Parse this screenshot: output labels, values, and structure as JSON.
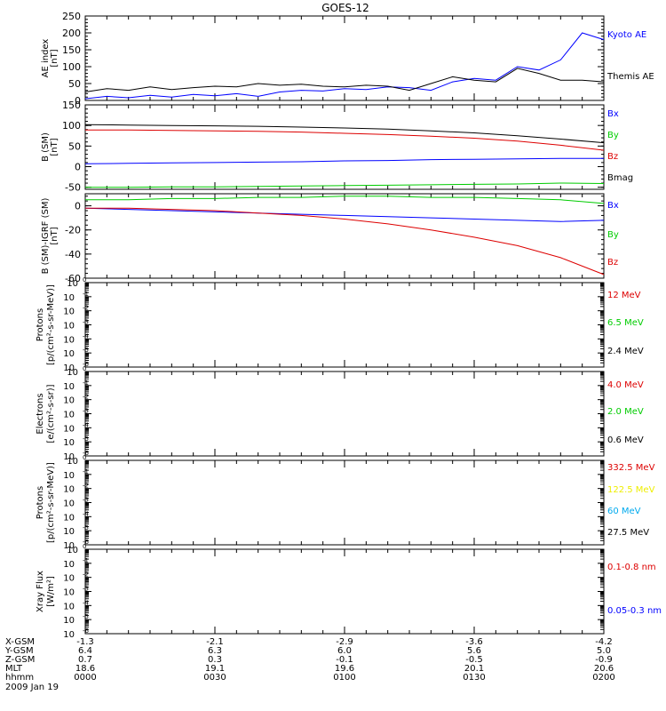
{
  "title": "GOES-12",
  "date_label": "2009 Jan 19",
  "ephemeris": {
    "rows": [
      {
        "label": "X-GSM",
        "values": [
          "-1.3",
          "-2.1",
          "-2.9",
          "-3.6",
          "-4.2"
        ]
      },
      {
        "label": "Y-GSM",
        "values": [
          "6.4",
          "6.3",
          "6.0",
          "5.6",
          "5.0"
        ]
      },
      {
        "label": "Z-GSM",
        "values": [
          "0.7",
          "0.3",
          "-0.1",
          "-0.5",
          "-0.9"
        ]
      },
      {
        "label": "MLT",
        "values": [
          "18.6",
          "19.1",
          "19.6",
          "20.1",
          "20.6"
        ]
      },
      {
        "label": "hhmm",
        "values": [
          "0000",
          "0030",
          "0100",
          "0130",
          "0200"
        ]
      }
    ]
  },
  "colors": {
    "black": "#000000",
    "blue": "#0000ff",
    "green": "#00cc00",
    "red": "#dd0000",
    "yellow": "#eeee00",
    "cyan": "#00aaee"
  },
  "chart_data": [
    {
      "id": "ae",
      "type": "line",
      "ylabel": [
        "AE index",
        "[nT]"
      ],
      "ylim": [
        0,
        250
      ],
      "yscale": "linear",
      "yticks": [
        0,
        50,
        100,
        150,
        200,
        250
      ],
      "x": [
        0,
        5,
        10,
        15,
        20,
        25,
        30,
        35,
        40,
        45,
        50,
        55,
        60,
        65,
        70,
        75,
        80,
        85,
        90,
        95,
        100,
        105,
        110,
        115,
        120
      ],
      "series": [
        {
          "name": "Kyoto AE",
          "color": "blue",
          "values": [
            5,
            12,
            8,
            15,
            10,
            18,
            14,
            20,
            12,
            25,
            30,
            28,
            35,
            32,
            40,
            38,
            30,
            55,
            65,
            60,
            100,
            90,
            120,
            200,
            180
          ]
        },
        {
          "name": "Themis AE",
          "color": "black",
          "values": [
            25,
            35,
            30,
            40,
            32,
            38,
            42,
            40,
            50,
            45,
            48,
            42,
            40,
            45,
            42,
            30,
            50,
            70,
            60,
            55,
            95,
            80,
            60,
            60,
            55
          ]
        }
      ]
    },
    {
      "id": "bsm",
      "type": "line",
      "ylabel": [
        "B (SM)",
        "[nT]"
      ],
      "ylim": [
        -55,
        150
      ],
      "yscale": "linear",
      "yticks": [
        -50,
        0,
        50,
        100,
        150
      ],
      "x": [
        0,
        10,
        20,
        30,
        40,
        50,
        60,
        70,
        80,
        90,
        100,
        110,
        120
      ],
      "series": [
        {
          "name": "Bx",
          "color": "blue",
          "values": [
            7,
            8,
            9,
            10,
            11,
            12,
            14,
            15,
            17,
            18,
            19,
            20,
            20
          ]
        },
        {
          "name": "By",
          "color": "green",
          "values": [
            -50,
            -50,
            -49,
            -49,
            -48,
            -47,
            -46,
            -45,
            -44,
            -43,
            -42,
            -40,
            -41
          ]
        },
        {
          "name": "Bz",
          "color": "red",
          "values": [
            89,
            89,
            88,
            87,
            86,
            84,
            81,
            78,
            74,
            69,
            62,
            52,
            40
          ]
        },
        {
          "name": "Bmag",
          "color": "black",
          "values": [
            102,
            101,
            100,
            99,
            98,
            96,
            94,
            91,
            87,
            82,
            75,
            67,
            58
          ]
        }
      ]
    },
    {
      "id": "bsm-igrf",
      "type": "line",
      "ylabel": [
        "B (SM)-IGRF (SM)",
        "[nT]"
      ],
      "ylim": [
        -60,
        10
      ],
      "yscale": "linear",
      "yticks": [
        -60,
        -40,
        -20,
        0
      ],
      "x": [
        0,
        10,
        20,
        30,
        40,
        50,
        60,
        70,
        80,
        90,
        100,
        110,
        120
      ],
      "series": [
        {
          "name": "Bx",
          "color": "blue",
          "values": [
            -2,
            -3,
            -4,
            -5,
            -6,
            -7,
            -8,
            -9,
            -10,
            -11,
            -12,
            -13,
            -12
          ]
        },
        {
          "name": "By",
          "color": "green",
          "values": [
            5,
            5,
            6,
            6,
            7,
            7,
            8,
            8,
            7,
            7,
            6,
            5,
            2
          ]
        },
        {
          "name": "Bz",
          "color": "red",
          "values": [
            -2,
            -2,
            -3,
            -4,
            -6,
            -8,
            -11,
            -15,
            -20,
            -26,
            -33,
            -43,
            -57
          ]
        }
      ]
    },
    {
      "id": "protons-low",
      "type": "line",
      "ylabel": [
        "Protons",
        "[p/(cm²-s-sr-MeV)]"
      ],
      "ylim": [
        -6,
        0
      ],
      "yscale": "log",
      "yticks": [
        -6,
        -5,
        -4,
        -3,
        -2,
        -1,
        0
      ],
      "series": [
        {
          "name": "12 MeV",
          "color": "red",
          "values": []
        },
        {
          "name": "6.5 MeV",
          "color": "green",
          "values": []
        },
        {
          "name": "2.4 MeV",
          "color": "black",
          "values": []
        }
      ]
    },
    {
      "id": "electrons",
      "type": "line",
      "ylabel": [
        "Electrons",
        "[e/(cm²-s-sr)]"
      ],
      "ylim": [
        -6,
        0
      ],
      "yscale": "log",
      "yticks": [
        -6,
        -5,
        -4,
        -3,
        -2,
        -1,
        0
      ],
      "series": [
        {
          "name": "4.0 MeV",
          "color": "red",
          "values": []
        },
        {
          "name": "2.0 MeV",
          "color": "green",
          "values": []
        },
        {
          "name": "0.6 MeV",
          "color": "black",
          "values": []
        }
      ]
    },
    {
      "id": "protons-high",
      "type": "line",
      "ylabel": [
        "Protons",
        "[p/(cm²-s-sr-MeV)]"
      ],
      "ylim": [
        -6,
        0
      ],
      "yscale": "log",
      "yticks": [
        -6,
        -5,
        -4,
        -3,
        -2,
        -1,
        0
      ],
      "series": [
        {
          "name": "332.5 MeV",
          "color": "red",
          "values": []
        },
        {
          "name": "122.5 MeV",
          "color": "yellow",
          "values": []
        },
        {
          "name": "60 MeV",
          "color": "cyan",
          "values": []
        },
        {
          "name": "27.5 MeV",
          "color": "black",
          "values": []
        }
      ]
    },
    {
      "id": "xray",
      "type": "line",
      "ylabel": [
        "Xray Flux",
        "[W/m²]"
      ],
      "ylim": [
        -6,
        0
      ],
      "yscale": "log",
      "yticks": [
        -6,
        -5,
        -4,
        -3,
        -2,
        -1,
        0
      ],
      "series": [
        {
          "name": "0.1-0.8 nm",
          "color": "red",
          "values": []
        },
        {
          "name": "0.05-0.3 nm",
          "color": "blue",
          "values": []
        }
      ]
    }
  ]
}
